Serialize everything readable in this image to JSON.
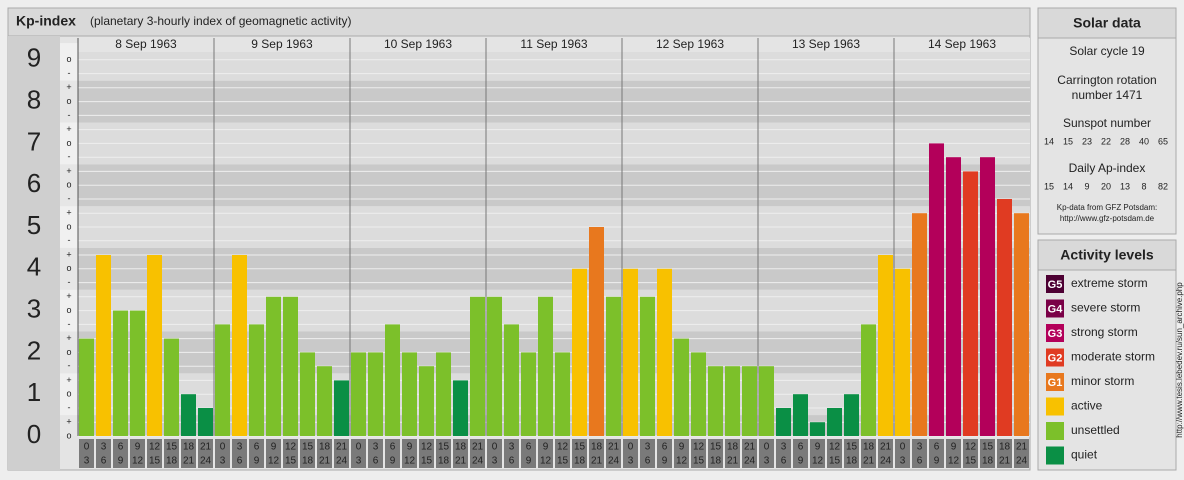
{
  "chart_data": {
    "type": "bar",
    "title": "Kp-index",
    "subtitle": "(planetary 3-hourly index of geomagnetic activity)",
    "days": [
      "8 Sep 1963",
      "9 Sep 1963",
      "10 Sep 1963",
      "11 Sep 1963",
      "12 Sep 1963",
      "13 Sep 1963",
      "14 Sep 1963"
    ],
    "hour_ranges": [
      [
        "0",
        "3"
      ],
      [
        "3",
        "6"
      ],
      [
        "6",
        "9"
      ],
      [
        "9",
        "12"
      ],
      [
        "12",
        "15"
      ],
      [
        "15",
        "18"
      ],
      [
        "18",
        "21"
      ],
      [
        "21",
        "24"
      ]
    ],
    "values": [
      2.33,
      4.33,
      3,
      3,
      4.33,
      2.33,
      1,
      0.67,
      2.67,
      4.33,
      2.67,
      3.33,
      3.33,
      2,
      1.67,
      1.33,
      2,
      2,
      2.67,
      2,
      1.67,
      2,
      1.33,
      3.33,
      3.33,
      2.67,
      2,
      3.33,
      2,
      4,
      5,
      3.33,
      4,
      3.33,
      4,
      2.33,
      2,
      1.67,
      1.67,
      1.67,
      1.67,
      0.67,
      1,
      0.33,
      0.67,
      1,
      2.67,
      4.33,
      4,
      5.33,
      7,
      6.67,
      6.33,
      6.67,
      5.67,
      5.33
    ],
    "colors": [
      "#7cc02a",
      "#f8c100",
      "#7cc02a",
      "#7cc02a",
      "#f8c100",
      "#7cc02a",
      "#0a8f45",
      "#0a8f45",
      "#7cc02a",
      "#f8c100",
      "#7cc02a",
      "#7cc02a",
      "#7cc02a",
      "#7cc02a",
      "#7cc02a",
      "#0a8f45",
      "#7cc02a",
      "#7cc02a",
      "#7cc02a",
      "#7cc02a",
      "#7cc02a",
      "#7cc02a",
      "#0a8f45",
      "#7cc02a",
      "#7cc02a",
      "#7cc02a",
      "#7cc02a",
      "#7cc02a",
      "#7cc02a",
      "#f8c100",
      "#e8781e",
      "#7cc02a",
      "#f8c100",
      "#7cc02a",
      "#f8c100",
      "#7cc02a",
      "#7cc02a",
      "#7cc02a",
      "#7cc02a",
      "#7cc02a",
      "#7cc02a",
      "#0a8f45",
      "#0a8f45",
      "#0a8f45",
      "#0a8f45",
      "#0a8f45",
      "#7cc02a",
      "#f8c100",
      "#f8c100",
      "#e8781e",
      "#b3005a",
      "#b3005a",
      "#e03b22",
      "#b3005a",
      "#e03b22",
      "#e8781e"
    ],
    "ylim": [
      0,
      9.4
    ],
    "yticks": [
      0,
      1,
      2,
      3,
      4,
      5,
      6,
      7,
      8,
      9
    ],
    "minor_yticks": [
      {
        "value": 0,
        "label": "o"
      },
      {
        "value": 0.33,
        "label": "+"
      },
      {
        "value": 0.67,
        "label": "-"
      },
      {
        "value": 1,
        "label": "o"
      },
      {
        "value": 1.33,
        "label": "+"
      },
      {
        "value": 1.67,
        "label": "-"
      },
      {
        "value": 2,
        "label": "o"
      },
      {
        "value": 2.33,
        "label": "+"
      },
      {
        "value": 2.67,
        "label": "-"
      },
      {
        "value": 3,
        "label": "o"
      },
      {
        "value": 3.33,
        "label": "+"
      },
      {
        "value": 3.67,
        "label": "-"
      },
      {
        "value": 4,
        "label": "o"
      },
      {
        "value": 4.33,
        "label": "+"
      },
      {
        "value": 4.67,
        "label": "-"
      },
      {
        "value": 5,
        "label": "o"
      },
      {
        "value": 5.33,
        "label": "+"
      },
      {
        "value": 5.67,
        "label": "-"
      },
      {
        "value": 6,
        "label": "o"
      },
      {
        "value": 6.33,
        "label": "+"
      },
      {
        "value": 6.67,
        "label": "-"
      },
      {
        "value": 7,
        "label": "o"
      },
      {
        "value": 7.33,
        "label": "+"
      },
      {
        "value": 7.67,
        "label": "-"
      },
      {
        "value": 8,
        "label": "o"
      },
      {
        "value": 8.33,
        "label": "+"
      },
      {
        "value": 8.67,
        "label": "-"
      },
      {
        "value": 9,
        "label": "o"
      }
    ],
    "grid": true
  },
  "solar_data": {
    "title": "Solar data",
    "cycle": "Solar cycle 19",
    "carrington_1": "Carrington rotation",
    "carrington_2": "number 1471",
    "sunspot_label": "Sunspot number",
    "sunspots": [
      14,
      15,
      23,
      22,
      28,
      40,
      65
    ],
    "ap_label": "Daily Ap-index",
    "ap": [
      15,
      14,
      9,
      20,
      13,
      8,
      82
    ],
    "source": "Kp-data from GFZ Potsdam:",
    "url": "http://www.gfz-potsdam.de"
  },
  "activity_levels": {
    "title": "Activity levels",
    "items": [
      {
        "badge": "G5",
        "label": "extreme storm",
        "color": "#4d0033"
      },
      {
        "badge": "G4",
        "label": "severe storm",
        "color": "#7a0047"
      },
      {
        "badge": "G3",
        "label": "strong storm",
        "color": "#b3005a"
      },
      {
        "badge": "G2",
        "label": "moderate storm",
        "color": "#e03b22"
      },
      {
        "badge": "G1",
        "label": "minor storm",
        "color": "#e8781e"
      },
      {
        "label": "active",
        "color": "#f8c100"
      },
      {
        "label": "unsettled",
        "color": "#7cc02a"
      },
      {
        "label": "quiet",
        "color": "#0a8f45"
      }
    ]
  },
  "side_url": "http://www.tesis.lebedev.ru/sun_archive.php"
}
